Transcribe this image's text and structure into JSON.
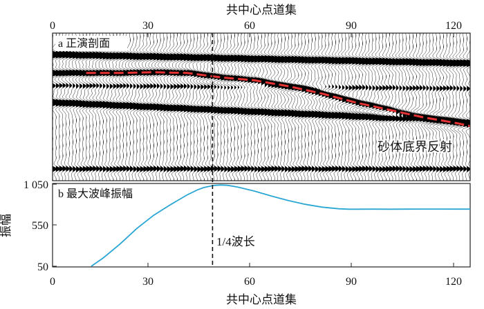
{
  "figure": {
    "top_axis_title": "共中心点道集",
    "bottom_axis_title": "共中心点道集",
    "x_ticks": [
      "0",
      "30",
      "60",
      "90",
      "120"
    ],
    "midline_label": "1/4波长"
  },
  "chart_data": [
    {
      "type": "heatmap",
      "panel_label": "a 正演剖面",
      "xlabel": "共中心点道集",
      "xlim": [
        0,
        124
      ],
      "ylim": null,
      "trace_count": 125,
      "reflector_label": "砂体底界反射",
      "reflector_picks": {
        "x": [
          10,
          20,
          30,
          40,
          50,
          60,
          70,
          80,
          90,
          100,
          110,
          120,
          124
        ],
        "tw": [
          0.27,
          0.27,
          0.265,
          0.27,
          0.3,
          0.32,
          0.36,
          0.41,
          0.47,
          0.52,
          0.57,
          0.61,
          0.63
        ]
      },
      "reference_line": {
        "x": 47.5,
        "style": "dashed"
      },
      "colors": {
        "wiggle": "#000000",
        "reflector": "#e53333"
      }
    },
    {
      "type": "line",
      "panel_label": "b 最大波峰振幅",
      "xlabel": "共中心点道集",
      "ylabel": "振幅",
      "xlim": [
        0,
        124
      ],
      "ylim": [
        50,
        1050
      ],
      "yticks": [
        "50",
        "550",
        "1 050"
      ],
      "series": [
        {
          "color": "#2aa6d4",
          "x": [
            11.5,
            15,
            20,
            25,
            30,
            35,
            40,
            43,
            45,
            48,
            50,
            52,
            55,
            60,
            65,
            70,
            75,
            80,
            85,
            88,
            90,
            95,
            100,
            105,
            110,
            115,
            120,
            124
          ],
          "y": [
            50,
            150,
            320,
            510,
            670,
            800,
            920,
            980,
            1010,
            1035,
            1040,
            1036,
            1015,
            965,
            905,
            850,
            805,
            770,
            750,
            745,
            745,
            746,
            745,
            746,
            747,
            747,
            746,
            746
          ]
        }
      ],
      "reference_line": {
        "x": 47.5,
        "style": "dashed"
      }
    }
  ]
}
